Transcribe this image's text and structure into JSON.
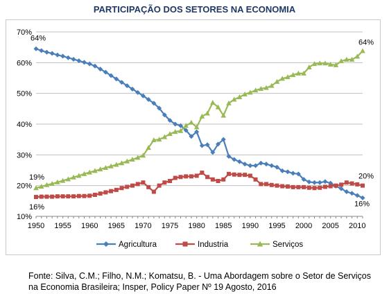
{
  "title": "PARTICIPAÇÃO DOS SETORES NA ECONOMIA",
  "source": "Fonte: Silva, C.M.; Filho, N.M.; Komatsu, B. - Uma Abordagem sobre o Setor de Serviços na Economia Brasileira; Insper, Policy Paper Nº 19 Agosto, 2016",
  "colors": {
    "agricultura": "#4a7ebb",
    "industria": "#be4b48",
    "servicos": "#98b954",
    "grid": "#bfbfbf"
  },
  "chart_data": {
    "type": "line",
    "title": "PARTICIPAÇÃO DOS SETORES NA ECONOMIA",
    "xlabel": "",
    "ylabel": "",
    "x": [
      1950,
      1951,
      1952,
      1953,
      1954,
      1955,
      1956,
      1957,
      1958,
      1959,
      1960,
      1961,
      1962,
      1963,
      1964,
      1965,
      1966,
      1967,
      1968,
      1969,
      1970,
      1971,
      1972,
      1973,
      1974,
      1975,
      1976,
      1977,
      1978,
      1979,
      1980,
      1981,
      1982,
      1983,
      1984,
      1985,
      1986,
      1987,
      1988,
      1989,
      1990,
      1991,
      1992,
      1993,
      1994,
      1995,
      1996,
      1997,
      1998,
      1999,
      2000,
      2001,
      2002,
      2003,
      2004,
      2005,
      2006,
      2007,
      2008,
      2009,
      2010,
      2011
    ],
    "xticks": [
      "1950",
      "1955",
      "1960",
      "1965",
      "1970",
      "1975",
      "1980",
      "1985",
      "1990",
      "1995",
      "2000",
      "2005",
      "2010"
    ],
    "yticks": [
      "10%",
      "20%",
      "30%",
      "40%",
      "50%",
      "60%",
      "70%"
    ],
    "ylim": [
      10,
      70
    ],
    "grid": true,
    "legend_position": "bottom",
    "series": [
      {
        "name": "Agricultura",
        "color": "#4a7ebb",
        "marker": "diamond",
        "values": [
          64.5,
          63.9,
          63.4,
          63.0,
          62.5,
          62.1,
          61.6,
          61.1,
          60.6,
          60.1,
          59.6,
          58.9,
          57.9,
          56.9,
          55.8,
          54.7,
          53.6,
          52.5,
          51.4,
          50.3,
          49.2,
          48.0,
          46.8,
          45.2,
          43.0,
          41.2,
          40.0,
          39.5,
          38.0,
          36.0,
          37.5,
          33.0,
          33.3,
          30.8,
          33.5,
          35.0,
          29.5,
          28.5,
          27.8,
          27.0,
          26.5,
          26.5,
          27.3,
          27.0,
          26.5,
          26.0,
          24.8,
          24.5,
          24.0,
          23.8,
          22.0,
          21.2,
          21.0,
          21.0,
          21.3,
          20.8,
          19.8,
          19.0,
          18.0,
          17.5,
          16.8,
          16.0
        ]
      },
      {
        "name": "Industria",
        "color": "#be4b48",
        "marker": "square",
        "values": [
          16.3,
          16.4,
          16.4,
          16.4,
          16.5,
          16.5,
          16.5,
          16.5,
          16.6,
          16.6,
          16.7,
          17.0,
          17.4,
          17.8,
          18.2,
          18.6,
          19.2,
          19.6,
          20.0,
          20.5,
          21.0,
          19.5,
          18.0,
          20.0,
          21.0,
          21.5,
          22.5,
          22.8,
          23.0,
          23.0,
          23.2,
          24.2,
          22.8,
          22.0,
          21.5,
          22.0,
          23.8,
          23.6,
          23.5,
          23.5,
          23.2,
          22.0,
          20.5,
          20.5,
          20.2,
          20.0,
          19.8,
          19.7,
          19.5,
          19.5,
          19.5,
          19.3,
          19.2,
          19.3,
          19.6,
          19.8,
          20.0,
          20.3,
          21.0,
          20.7,
          20.4,
          20.0
        ]
      },
      {
        "name": "Serviços",
        "color": "#98b954",
        "marker": "triangle",
        "values": [
          19.2,
          19.7,
          20.2,
          20.6,
          21.1,
          21.6,
          22.1,
          22.7,
          23.2,
          23.8,
          24.3,
          24.8,
          25.3,
          25.8,
          26.3,
          26.8,
          27.3,
          27.9,
          28.5,
          29.1,
          29.8,
          32.3,
          34.8,
          35.0,
          35.8,
          36.8,
          37.5,
          37.8,
          39.5,
          40.5,
          39.0,
          42.5,
          43.5,
          47.0,
          45.5,
          42.8,
          46.8,
          48.0,
          48.8,
          49.7,
          50.3,
          51.0,
          51.5,
          51.8,
          52.5,
          53.8,
          54.8,
          55.3,
          56.0,
          56.5,
          56.5,
          58.5,
          59.6,
          59.8,
          59.8,
          59.4,
          59.2,
          60.5,
          61.0,
          61.0,
          62.0,
          63.8
        ]
      }
    ],
    "annotations": [
      {
        "label": "64%",
        "series": "Agricultura",
        "year": 1950
      },
      {
        "label": "16%",
        "series": "Industria",
        "year": 1950
      },
      {
        "label": "19%",
        "series": "Serviços",
        "year": 1950
      },
      {
        "label": "64%",
        "series": "Serviços",
        "year": 2011
      },
      {
        "label": "20%",
        "series": "Industria",
        "year": 2011
      },
      {
        "label": "16%",
        "series": "Agricultura",
        "year": 2011
      }
    ]
  }
}
